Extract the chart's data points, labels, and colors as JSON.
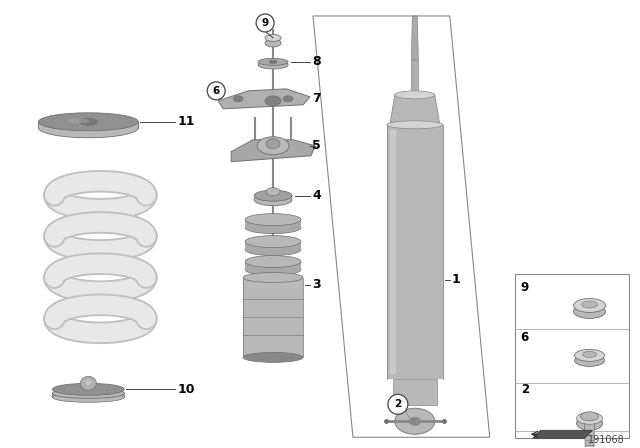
{
  "background_color": "#ffffff",
  "diagram_id": "191068",
  "line_color": "#444444",
  "gray_light": "#d4d4d4",
  "gray_med": "#b8b8b8",
  "gray_dark": "#888888",
  "gray_darker": "#707070",
  "spring_color": "#e8e8e8",
  "spring_shadow": "#c0c0c0"
}
